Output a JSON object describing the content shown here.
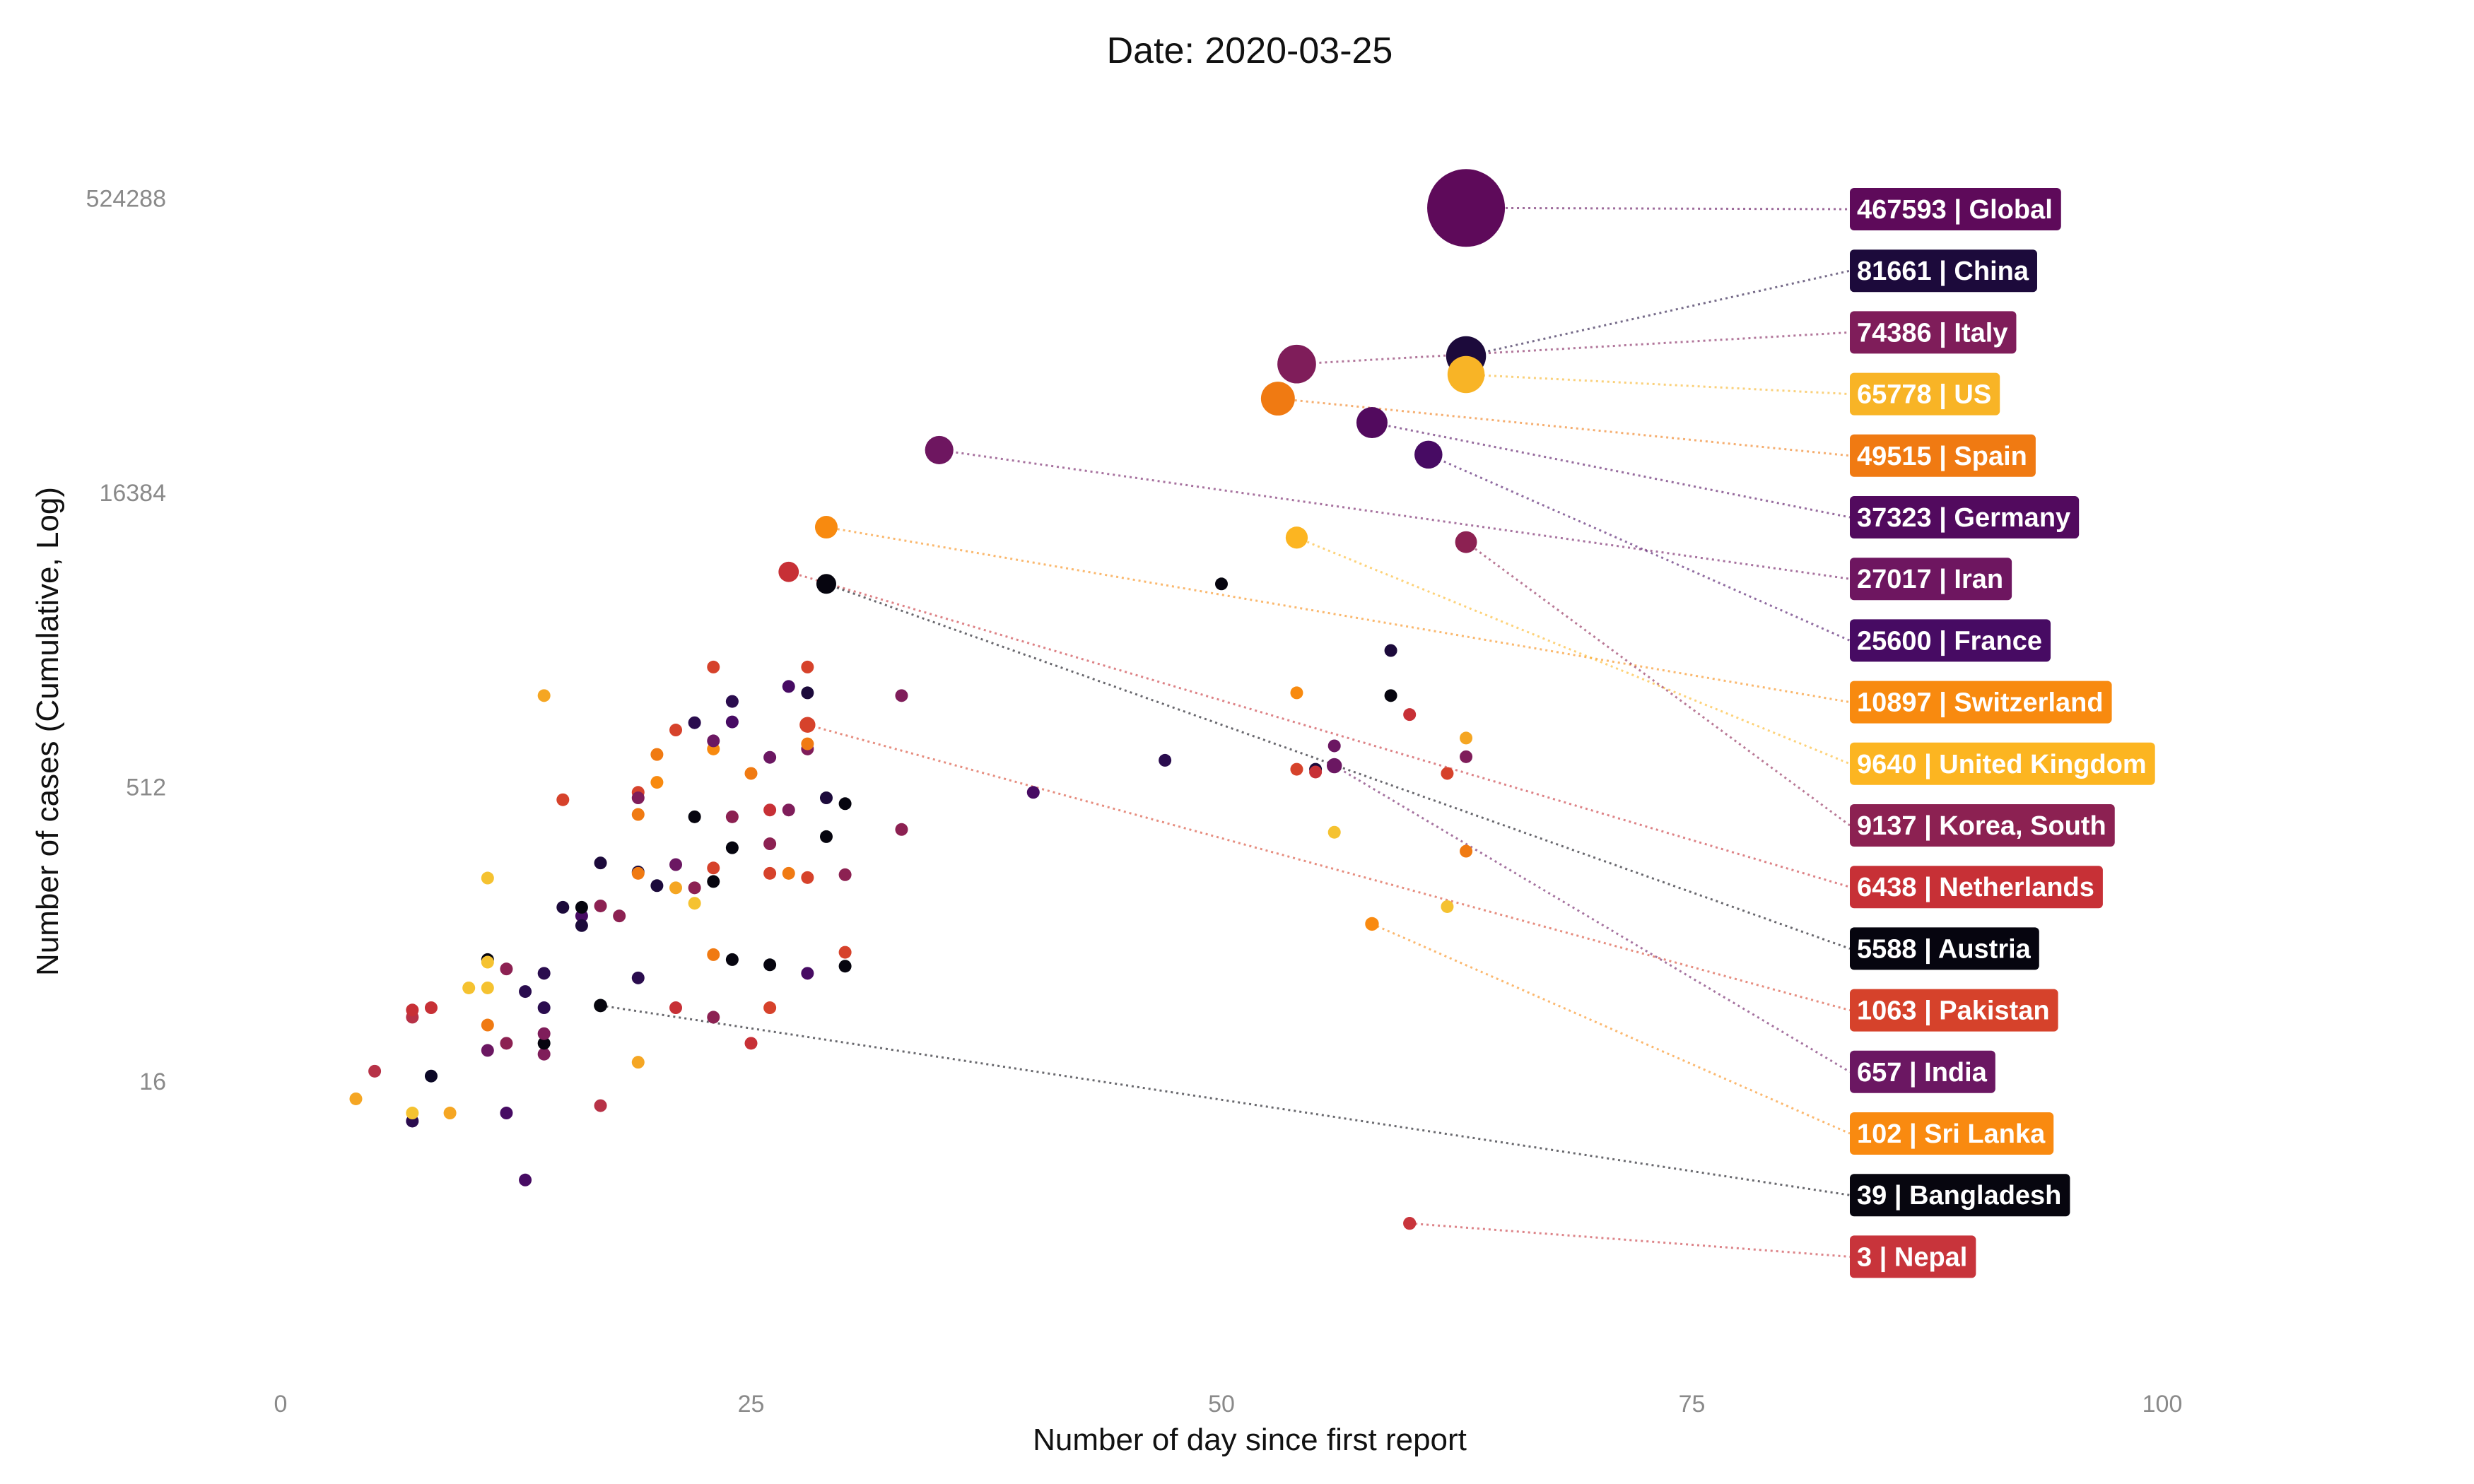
{
  "chart_data": {
    "type": "scatter",
    "title": "Date: 2020-03-25",
    "xlabel": "Number of day since first report",
    "ylabel": "Number of cases (Cumulative, Log)",
    "x_scale": "linear",
    "y_scale": "log2",
    "xlim": [
      0,
      100
    ],
    "x_ticks": [
      0,
      25,
      50,
      75,
      100
    ],
    "y_ticks": [
      16,
      512,
      16384,
      524288
    ],
    "grid": false,
    "legend": "none",
    "labeled_series": [
      {
        "name": "Global",
        "label": "467593 | Global",
        "x": 63,
        "y": 467593,
        "color": "#5e0a5a"
      },
      {
        "name": "China",
        "label": "81661 | China",
        "x": 63,
        "y": 81661,
        "color": "#1c0a3b"
      },
      {
        "name": "Italy",
        "label": "74386 | Italy",
        "x": 54,
        "y": 74386,
        "color": "#7f1d5a"
      },
      {
        "name": "US",
        "label": "65778 | US",
        "x": 63,
        "y": 65778,
        "color": "#f8b426"
      },
      {
        "name": "Spain",
        "label": "49515 | Spain",
        "x": 53,
        "y": 49515,
        "color": "#f07a12"
      },
      {
        "name": "Germany",
        "label": "37323 | Germany",
        "x": 58,
        "y": 37323,
        "color": "#520a5e"
      },
      {
        "name": "Iran",
        "label": "27017 | Iran",
        "x": 35,
        "y": 27017,
        "color": "#6e1660"
      },
      {
        "name": "France",
        "label": "25600 | France",
        "x": 61,
        "y": 25600,
        "color": "#470b63"
      },
      {
        "name": "Switzerland",
        "label": "10897 | Switzerland",
        "x": 29,
        "y": 10897,
        "color": "#f88a0f"
      },
      {
        "name": "United Kingdom",
        "label": "9640 | United Kingdom",
        "x": 54,
        "y": 9640,
        "color": "#fcb521"
      },
      {
        "name": "Korea, South",
        "label": "9137 | Korea, South",
        "x": 63,
        "y": 9137,
        "color": "#8c2152"
      },
      {
        "name": "Netherlands",
        "label": "6438 | Netherlands",
        "x": 27,
        "y": 6438,
        "color": "#c73036"
      },
      {
        "name": "Austria",
        "label": "5588 | Austria",
        "x": 29,
        "y": 5588,
        "color": "#06050f"
      },
      {
        "name": "Pakistan",
        "label": "1063 | Pakistan",
        "x": 28,
        "y": 1063,
        "color": "#d6422b"
      },
      {
        "name": "India",
        "label": "657 | India",
        "x": 56,
        "y": 657,
        "color": "#6b1762"
      },
      {
        "name": "Sri Lanka",
        "label": "102 | Sri Lanka",
        "x": 58,
        "y": 102,
        "color": "#f98a10"
      },
      {
        "name": "Bangladesh",
        "label": "39 | Bangladesh",
        "x": 17,
        "y": 39,
        "color": "#07060f"
      },
      {
        "name": "Nepal",
        "label": "3 | Nepal",
        "x": 60,
        "y": 3,
        "color": "#c8343b"
      }
    ],
    "other_points": [
      {
        "x": 4,
        "y": 13,
        "color": "#f5a623"
      },
      {
        "x": 5,
        "y": 18,
        "color": "#b73247"
      },
      {
        "x": 7,
        "y": 10,
        "color": "#2a0c4e"
      },
      {
        "x": 7,
        "y": 11,
        "color": "#f5c230"
      },
      {
        "x": 7,
        "y": 34,
        "color": "#b73247"
      },
      {
        "x": 7,
        "y": 37,
        "color": "#c73036"
      },
      {
        "x": 8,
        "y": 17,
        "color": "#0c0826"
      },
      {
        "x": 8,
        "y": 38,
        "color": "#c73036"
      },
      {
        "x": 9,
        "y": 11,
        "color": "#f5a623"
      },
      {
        "x": 10,
        "y": 48,
        "color": "#f5c230"
      },
      {
        "x": 11,
        "y": 23,
        "color": "#6b1762"
      },
      {
        "x": 11,
        "y": 48,
        "color": "#f5c230"
      },
      {
        "x": 11,
        "y": 67,
        "color": "#06050f"
      },
      {
        "x": 11,
        "y": 65,
        "color": "#f5c230"
      },
      {
        "x": 11,
        "y": 31,
        "color": "#f07a12"
      },
      {
        "x": 11,
        "y": 175,
        "color": "#f5c230"
      },
      {
        "x": 12,
        "y": 11,
        "color": "#470b63"
      },
      {
        "x": 12,
        "y": 25,
        "color": "#8c2152"
      },
      {
        "x": 12,
        "y": 60,
        "color": "#8c2152"
      },
      {
        "x": 13,
        "y": 46,
        "color": "#2a0c4e"
      },
      {
        "x": 13,
        "y": 5,
        "color": "#470b63"
      },
      {
        "x": 14,
        "y": 22,
        "color": "#7f1d5a"
      },
      {
        "x": 14,
        "y": 25,
        "color": "#06050f"
      },
      {
        "x": 14,
        "y": 28,
        "color": "#7f1d5a"
      },
      {
        "x": 14,
        "y": 38,
        "color": "#2a0c4e"
      },
      {
        "x": 14,
        "y": 57,
        "color": "#2a0c4e"
      },
      {
        "x": 14,
        "y": 1500,
        "color": "#f5a623"
      },
      {
        "x": 15,
        "y": 124,
        "color": "#1c0a3b"
      },
      {
        "x": 15,
        "y": 440,
        "color": "#d6422b"
      },
      {
        "x": 16,
        "y": 112,
        "color": "#470b63"
      },
      {
        "x": 16,
        "y": 124,
        "color": "#06050f"
      },
      {
        "x": 16,
        "y": 100,
        "color": "#1c0a3b"
      },
      {
        "x": 17,
        "y": 12,
        "color": "#b73247"
      },
      {
        "x": 17,
        "y": 209,
        "color": "#1c0a3b"
      },
      {
        "x": 17,
        "y": 126,
        "color": "#8c2152"
      },
      {
        "x": 18,
        "y": 112,
        "color": "#8c2152"
      },
      {
        "x": 19,
        "y": 188,
        "color": "#1c0a3b"
      },
      {
        "x": 19,
        "y": 185,
        "color": "#f07a12"
      },
      {
        "x": 19,
        "y": 480,
        "color": "#d6422b"
      },
      {
        "x": 19,
        "y": 450,
        "color": "#7f1d5a"
      },
      {
        "x": 19,
        "y": 370,
        "color": "#f07a12"
      },
      {
        "x": 19,
        "y": 54,
        "color": "#2a0c4e"
      },
      {
        "x": 19,
        "y": 20,
        "color": "#f5a623"
      },
      {
        "x": 20,
        "y": 160,
        "color": "#1c0a3b"
      },
      {
        "x": 20,
        "y": 540,
        "color": "#f88a0f"
      },
      {
        "x": 20,
        "y": 750,
        "color": "#f07a12"
      },
      {
        "x": 21,
        "y": 156,
        "color": "#f5a623"
      },
      {
        "x": 21,
        "y": 205,
        "color": "#6b1762"
      },
      {
        "x": 21,
        "y": 1000,
        "color": "#d6422b"
      },
      {
        "x": 21,
        "y": 38,
        "color": "#c73036"
      },
      {
        "x": 22,
        "y": 156,
        "color": "#8c2152"
      },
      {
        "x": 22,
        "y": 130,
        "color": "#f5c230"
      },
      {
        "x": 22,
        "y": 360,
        "color": "#06050f"
      },
      {
        "x": 22,
        "y": 1090,
        "color": "#2a0c4e"
      },
      {
        "x": 23,
        "y": 168,
        "color": "#06050f"
      },
      {
        "x": 23,
        "y": 197,
        "color": "#d6422b"
      },
      {
        "x": 23,
        "y": 71,
        "color": "#f07a12"
      },
      {
        "x": 23,
        "y": 34,
        "color": "#8c2152"
      },
      {
        "x": 23,
        "y": 800,
        "color": "#f88a0f"
      },
      {
        "x": 23,
        "y": 880,
        "color": "#6b1762"
      },
      {
        "x": 23,
        "y": 2100,
        "color": "#d6422b"
      },
      {
        "x": 24,
        "y": 67,
        "color": "#06050f"
      },
      {
        "x": 24,
        "y": 250,
        "color": "#06050f"
      },
      {
        "x": 24,
        "y": 1100,
        "color": "#470b63"
      },
      {
        "x": 24,
        "y": 1400,
        "color": "#2a0c4e"
      },
      {
        "x": 24,
        "y": 360,
        "color": "#8c2152"
      },
      {
        "x": 25,
        "y": 25,
        "color": "#c73036"
      },
      {
        "x": 25,
        "y": 600,
        "color": "#f07a12"
      },
      {
        "x": 26,
        "y": 63,
        "color": "#06050f"
      },
      {
        "x": 26,
        "y": 38,
        "color": "#d6422b"
      },
      {
        "x": 26,
        "y": 185,
        "color": "#d6422b"
      },
      {
        "x": 26,
        "y": 262,
        "color": "#8c2152"
      },
      {
        "x": 26,
        "y": 390,
        "color": "#c73036"
      },
      {
        "x": 26,
        "y": 725,
        "color": "#6b1762"
      },
      {
        "x": 27,
        "y": 185,
        "color": "#f07a12"
      },
      {
        "x": 27,
        "y": 390,
        "color": "#7f1d5a"
      },
      {
        "x": 27,
        "y": 1670,
        "color": "#470b63"
      },
      {
        "x": 28,
        "y": 57,
        "color": "#470b63"
      },
      {
        "x": 28,
        "y": 176,
        "color": "#d6422b"
      },
      {
        "x": 28,
        "y": 800,
        "color": "#7f1d5a"
      },
      {
        "x": 28,
        "y": 850,
        "color": "#f07a12"
      },
      {
        "x": 28,
        "y": 2100,
        "color": "#d6422b"
      },
      {
        "x": 28,
        "y": 1550,
        "color": "#1c0a3b"
      },
      {
        "x": 29,
        "y": 450,
        "color": "#1c0a3b"
      },
      {
        "x": 29,
        "y": 285,
        "color": "#06050f"
      },
      {
        "x": 30,
        "y": 62,
        "color": "#06050f"
      },
      {
        "x": 30,
        "y": 73,
        "color": "#d6422b"
      },
      {
        "x": 30,
        "y": 182,
        "color": "#8c2152"
      },
      {
        "x": 30,
        "y": 420,
        "color": "#06050f"
      },
      {
        "x": 33,
        "y": 1500,
        "color": "#7f1d5a"
      },
      {
        "x": 33,
        "y": 310,
        "color": "#8c2152"
      },
      {
        "x": 40,
        "y": 480,
        "color": "#470b63"
      },
      {
        "x": 47,
        "y": 700,
        "color": "#2a0c4e"
      },
      {
        "x": 50,
        "y": 5588,
        "color": "#06050f"
      },
      {
        "x": 54,
        "y": 1550,
        "color": "#f88a0f"
      },
      {
        "x": 54,
        "y": 630,
        "color": "#d6422b"
      },
      {
        "x": 55,
        "y": 630,
        "color": "#1c0a3b"
      },
      {
        "x": 55,
        "y": 610,
        "color": "#c73036"
      },
      {
        "x": 56,
        "y": 300,
        "color": "#f5c230"
      },
      {
        "x": 56,
        "y": 830,
        "color": "#6b1762"
      },
      {
        "x": 59,
        "y": 2550,
        "color": "#1c0a3b"
      },
      {
        "x": 59,
        "y": 1500,
        "color": "#06050f"
      },
      {
        "x": 60,
        "y": 1200,
        "color": "#c73036"
      },
      {
        "x": 62,
        "y": 600,
        "color": "#d6422b"
      },
      {
        "x": 62,
        "y": 125,
        "color": "#f5c230"
      },
      {
        "x": 63,
        "y": 910,
        "color": "#f5a623"
      },
      {
        "x": 63,
        "y": 730,
        "color": "#7f1d5a"
      },
      {
        "x": 63,
        "y": 240,
        "color": "#f07a12"
      }
    ]
  }
}
